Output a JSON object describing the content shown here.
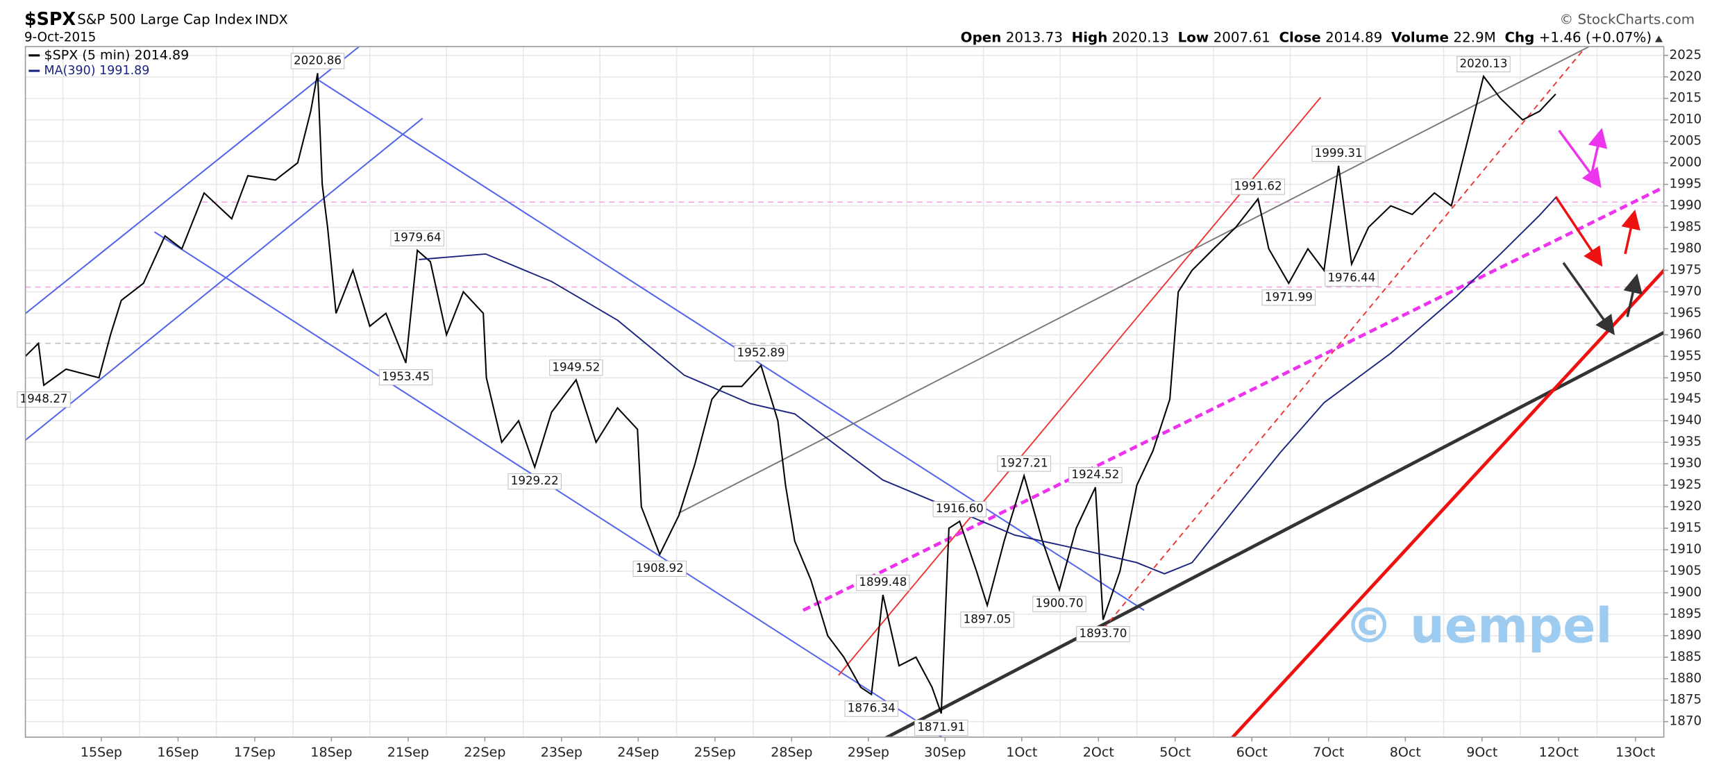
{
  "chart_data": {
    "type": "line",
    "symbol": "$SPX",
    "title": "S&P 500 Large Cap Index",
    "exchange": "INDX",
    "date": "9-Oct-2015",
    "source": "© StockCharts.com",
    "ohlc": [
      {
        "label": "Open",
        "value": 2013.73
      },
      {
        "label": "High",
        "value": 2020.13
      },
      {
        "label": "Low",
        "value": 2007.61
      },
      {
        "label": "Close",
        "value": 2014.89
      },
      {
        "label": "Volume",
        "value": "22.9M"
      },
      {
        "label": "Chg",
        "value": "+1.46 (+0.07%)"
      }
    ],
    "watermark": "© uempel",
    "xlim": [
      -0.99,
      20.37
    ],
    "ylim": [
      1866.4,
      2027.05
    ],
    "grid": true,
    "xticks": [
      {
        "value": 0,
        "label": "15Sep"
      },
      {
        "value": 1,
        "label": "16Sep"
      },
      {
        "value": 2,
        "label": "17Sep"
      },
      {
        "value": 3,
        "label": "18Sep"
      },
      {
        "value": 4,
        "label": "21Sep"
      },
      {
        "value": 5,
        "label": "22Sep"
      },
      {
        "value": 6,
        "label": "23Sep"
      },
      {
        "value": 7,
        "label": "24Sep"
      },
      {
        "value": 8,
        "label": "25Sep"
      },
      {
        "value": 9,
        "label": "28Sep"
      },
      {
        "value": 10,
        "label": "29Sep"
      },
      {
        "value": 11,
        "label": "30Sep"
      },
      {
        "value": 12,
        "label": "1Oct"
      },
      {
        "value": 13,
        "label": "2Oct"
      },
      {
        "value": 14,
        "label": "5Oct"
      },
      {
        "value": 15,
        "label": "6Oct"
      },
      {
        "value": 16,
        "label": "7Oct"
      },
      {
        "value": 17,
        "label": "8Oct"
      },
      {
        "value": 18,
        "label": "9Oct"
      },
      {
        "value": 19,
        "label": "12Oct"
      },
      {
        "value": 20,
        "label": "13Oct"
      }
    ],
    "yticks": [
      1870,
      1875,
      1880,
      1885,
      1890,
      1895,
      1900,
      1905,
      1910,
      1915,
      1920,
      1925,
      1930,
      1935,
      1940,
      1945,
      1950,
      1955,
      1960,
      1965,
      1970,
      1975,
      1980,
      1985,
      1990,
      1995,
      2000,
      2005,
      2010,
      2015,
      2020,
      2025
    ],
    "series": [
      {
        "name": "$SPX (5 min) 2014.89",
        "color": "#000000",
        "x": [
          -0.99,
          -0.82,
          -0.75,
          -0.46,
          -0.03,
          0.12,
          0.26,
          0.55,
          0.83,
          1.05,
          1.34,
          1.7,
          1.91,
          2.27,
          2.56,
          2.73,
          2.82,
          2.88,
          2.95,
          3.06,
          3.28,
          3.5,
          3.71,
          3.97,
          4.12,
          4.29,
          4.5,
          4.72,
          4.98,
          5.02,
          5.22,
          5.44,
          5.65,
          5.87,
          6.19,
          6.45,
          6.73,
          6.99,
          7.04,
          7.28,
          7.53,
          7.74,
          7.96,
          8.1,
          8.35,
          8.6,
          8.82,
          8.92,
          9.04,
          9.25,
          9.47,
          9.68,
          9.9,
          10.04,
          10.19,
          10.4,
          10.62,
          10.83,
          10.95,
          11.05,
          11.19,
          11.41,
          11.55,
          11.77,
          12.03,
          12.27,
          12.49,
          12.71,
          12.96,
          13.06,
          13.28,
          13.5,
          13.71,
          13.93,
          14.04,
          14.22,
          14.5,
          14.79,
          15.08,
          15.22,
          15.48,
          15.73,
          15.94,
          16.13,
          16.3,
          16.52,
          16.81,
          17.09,
          17.38,
          17.6,
          17.81,
          18.02,
          18.24,
          18.53,
          18.75,
          18.96
        ],
        "values": [
          1955,
          1958,
          1948.27,
          1952,
          1950,
          1960,
          1968,
          1972,
          1983,
          1980,
          1993,
          1987,
          1997,
          1996,
          2000,
          2012,
          2020.86,
          1995,
          1985,
          1965,
          1975,
          1962,
          1965,
          1953.45,
          1979.64,
          1977,
          1960,
          1970,
          1965,
          1950,
          1935,
          1940,
          1929.22,
          1942,
          1949.52,
          1935,
          1943,
          1938,
          1920,
          1908.92,
          1918,
          1930,
          1945,
          1948,
          1948,
          1952.89,
          1940,
          1925,
          1912,
          1903,
          1890,
          1885,
          1878,
          1876.34,
          1899.48,
          1883,
          1885,
          1878,
          1871.91,
          1915,
          1916.6,
          1905,
          1897.05,
          1912,
          1927.21,
          1912,
          1900.7,
          1915,
          1924.52,
          1893.7,
          1905,
          1925,
          1933,
          1945,
          1970,
          1975,
          1980,
          1985,
          1991.62,
          1980,
          1971.99,
          1980,
          1975,
          1999.31,
          1976.44,
          1985,
          1990,
          1988,
          1993,
          1990,
          2005,
          2020.13,
          2015,
          2010,
          2012,
          2016
        ],
        "value_labels": [
          null,
          null,
          "1948.27",
          null,
          null,
          null,
          null,
          null,
          null,
          null,
          null,
          null,
          null,
          null,
          null,
          null,
          "2020.86",
          null,
          null,
          null,
          null,
          null,
          null,
          "1953.45",
          "1979.64",
          null,
          null,
          null,
          null,
          null,
          null,
          null,
          "1929.22",
          null,
          "1949.52",
          null,
          null,
          null,
          null,
          "1908.92",
          null,
          null,
          null,
          null,
          null,
          "1952.89",
          null,
          null,
          null,
          null,
          null,
          null,
          null,
          "1876.34",
          "1899.48",
          null,
          null,
          null,
          "1871.91",
          null,
          "1916.60",
          null,
          "1897.05",
          null,
          "1927.21",
          null,
          "1900.70",
          null,
          "1924.52",
          "1893.70",
          null,
          null,
          null,
          null,
          null,
          null,
          null,
          null,
          "1991.62",
          null,
          "1971.99",
          null,
          null,
          "1999.31",
          "1976.44",
          null,
          null,
          null,
          null,
          null,
          null,
          "2020.13",
          null,
          null,
          null,
          null
        ]
      },
      {
        "name": "MA(390) 1991.89",
        "color": "#1a237e",
        "x": [
          4.14,
          5.01,
          5.87,
          6.73,
          7.6,
          8.46,
          9.04,
          9.61,
          10.19,
          11.05,
          11.91,
          12.78,
          13.5,
          13.86,
          14.22,
          14.79,
          15.37,
          15.94,
          16.81,
          17.67,
          18.24,
          18.75,
          18.96
        ],
        "values": [
          1977.5,
          1978.8,
          1972.4,
          1963.4,
          1950.6,
          1944,
          1941.6,
          1933.9,
          1926.2,
          1919.8,
          1913.4,
          1910,
          1907,
          1904.4,
          1907,
          1919.8,
          1932.6,
          1944.2,
          1955.7,
          1969,
          1978.8,
          1987.8,
          1991.89
        ]
      }
    ]
  }
}
